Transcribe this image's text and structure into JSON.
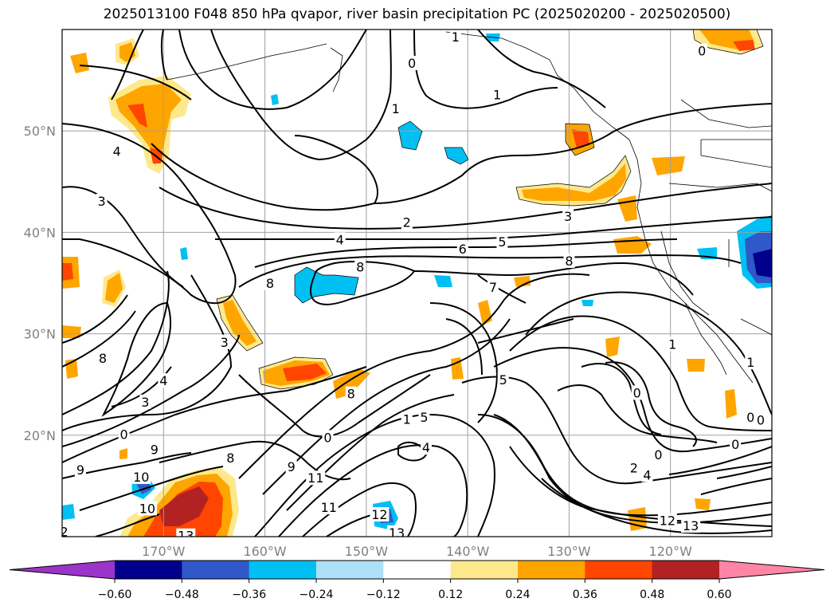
{
  "title": "2025013100 F048 850 hPa qvapor, river basin precipitation PC (2025020200 - 2025020500)",
  "map": {
    "lon_range": [
      -180,
      -110
    ],
    "lat_range": [
      10,
      60
    ],
    "lon_ticks": [
      {
        "lon": -170,
        "label": "170°W"
      },
      {
        "lon": -160,
        "label": "160°W"
      },
      {
        "lon": -150,
        "label": "150°W"
      },
      {
        "lon": -140,
        "label": "140°W"
      },
      {
        "lon": -130,
        "label": "130°W"
      },
      {
        "lon": -120,
        "label": "120°W"
      }
    ],
    "lat_ticks": [
      {
        "lat": 20,
        "label": "20°N"
      },
      {
        "lat": 30,
        "label": "30°N"
      },
      {
        "lat": 40,
        "label": "40°N"
      },
      {
        "lat": 50,
        "label": "50°N"
      }
    ],
    "grid": true,
    "contour_labels": [
      {
        "text": "0",
        "lon": -145.5,
        "lat": 56.7
      },
      {
        "text": "1",
        "lon": -141.2,
        "lat": 59.3
      },
      {
        "text": "1",
        "lon": -147.1,
        "lat": 52.2
      },
      {
        "text": "1",
        "lon": -137.1,
        "lat": 53.6
      },
      {
        "text": "0",
        "lon": -116.9,
        "lat": 57.9
      },
      {
        "text": "4",
        "lon": -174.6,
        "lat": 48.0
      },
      {
        "text": "3",
        "lon": -176.1,
        "lat": 43.1
      },
      {
        "text": "2",
        "lon": -146.0,
        "lat": 41.0
      },
      {
        "text": "3",
        "lon": -130.1,
        "lat": 41.6
      },
      {
        "text": "4",
        "lon": -152.6,
        "lat": 39.3
      },
      {
        "text": "5",
        "lon": -136.6,
        "lat": 39.1
      },
      {
        "text": "6",
        "lon": -140.5,
        "lat": 38.4
      },
      {
        "text": "8",
        "lon": -159.5,
        "lat": 35.0
      },
      {
        "text": "8",
        "lon": -130.0,
        "lat": 37.2
      },
      {
        "text": "8",
        "lon": -150.6,
        "lat": 36.6
      },
      {
        "text": "7",
        "lon": -137.5,
        "lat": 34.6
      },
      {
        "text": "3",
        "lon": -164.0,
        "lat": 29.2
      },
      {
        "text": "8",
        "lon": -176.0,
        "lat": 27.6
      },
      {
        "text": "4",
        "lon": -170.0,
        "lat": 25.4
      },
      {
        "text": "3",
        "lon": -171.8,
        "lat": 23.3
      },
      {
        "text": "8",
        "lon": -151.5,
        "lat": 24.1
      },
      {
        "text": "5",
        "lon": -136.5,
        "lat": 25.5
      },
      {
        "text": "1",
        "lon": -119.8,
        "lat": 29.0
      },
      {
        "text": "1",
        "lon": -112.1,
        "lat": 27.2
      },
      {
        "text": "0",
        "lon": -123.3,
        "lat": 24.2
      },
      {
        "text": "0",
        "lon": -112.1,
        "lat": 21.8
      },
      {
        "text": "0",
        "lon": -111.1,
        "lat": 21.5
      },
      {
        "text": "5",
        "lon": -144.3,
        "lat": 21.8
      },
      {
        "text": "1",
        "lon": -146.0,
        "lat": 21.6
      },
      {
        "text": "0",
        "lon": -173.9,
        "lat": 20.1
      },
      {
        "text": "9",
        "lon": -170.9,
        "lat": 18.6
      },
      {
        "text": "8",
        "lon": -163.4,
        "lat": 17.8
      },
      {
        "text": "0",
        "lon": -153.8,
        "lat": 19.8
      },
      {
        "text": "4",
        "lon": -144.1,
        "lat": 18.8
      },
      {
        "text": "0",
        "lon": -121.2,
        "lat": 18.1
      },
      {
        "text": "0",
        "lon": -113.6,
        "lat": 19.1
      },
      {
        "text": "2",
        "lon": -123.6,
        "lat": 16.8
      },
      {
        "text": "4",
        "lon": -122.3,
        "lat": 16.1
      },
      {
        "text": "9",
        "lon": -178.2,
        "lat": 16.6
      },
      {
        "text": "9",
        "lon": -157.4,
        "lat": 16.9
      },
      {
        "text": "10",
        "lon": -172.2,
        "lat": 15.9
      },
      {
        "text": "11",
        "lon": -155.0,
        "lat": 15.8
      },
      {
        "text": "10",
        "lon": -171.6,
        "lat": 12.8
      },
      {
        "text": "11",
        "lon": -153.7,
        "lat": 12.9
      },
      {
        "text": "12",
        "lon": -148.7,
        "lat": 12.2
      },
      {
        "text": "13",
        "lon": -147.0,
        "lat": 10.4
      },
      {
        "text": "13",
        "lon": -167.8,
        "lat": 10.1
      },
      {
        "text": "12",
        "lon": -120.3,
        "lat": 11.6
      },
      {
        "text": "13",
        "lon": -118.0,
        "lat": 11.1
      },
      {
        "text": "2",
        "lon": -179.8,
        "lat": 10.5
      }
    ]
  },
  "colorbar": {
    "boundaries": [
      "−0.60",
      "−0.48",
      "−0.36",
      "−0.24",
      "−0.12",
      "0.12",
      "0.24",
      "0.36",
      "0.48",
      "0.60"
    ],
    "colors": [
      "#9b34c8",
      "#00008c",
      "#3058c8",
      "#00bff2",
      "#aee1f8",
      "#ffffff",
      "#fde98c",
      "#ffa500",
      "#ff4500",
      "#b22222",
      "#ff85a6"
    ]
  }
}
